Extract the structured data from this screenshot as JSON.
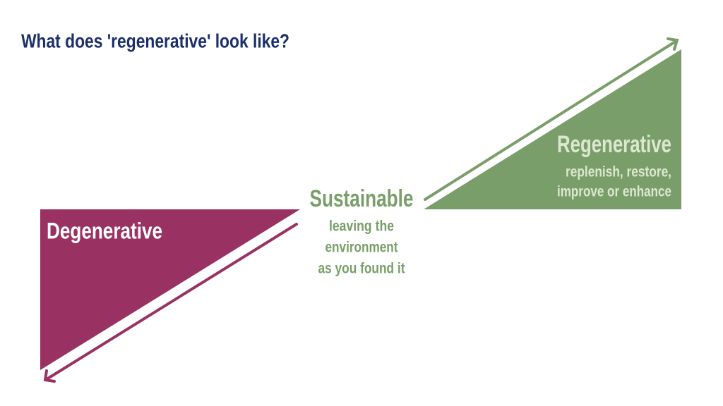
{
  "title": "What does 'regenerative' look like?",
  "degenerative": {
    "label": "Degenerative"
  },
  "sustainable": {
    "label": "Sustainable",
    "description": [
      "leaving the",
      "environment",
      "as you found it"
    ]
  },
  "regenerative": {
    "label": "Regenerative",
    "description": [
      "replenish, restore,",
      "improve or enhance"
    ]
  }
}
